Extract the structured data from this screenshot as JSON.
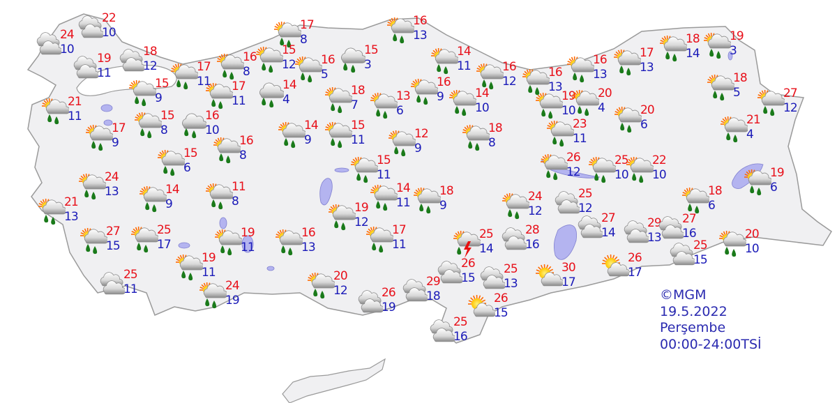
{
  "info": {
    "copyright": "©MGM",
    "date": "19.5.2022",
    "day": "Perşembe",
    "period": "00:00-24:00TSİ"
  },
  "colors": {
    "max_temp": "#e8101a",
    "min_temp": "#1a1ab8",
    "land": "#f0f0f2",
    "water": "#b4b4f0",
    "border": "#9a9a9a",
    "rain_drop": "#1a7a1a"
  },
  "legend_icons": {
    "c": "cloudy-icon",
    "r": "partly-cloudy-rain-icon",
    "cr": "cloudy-rain-icon",
    "s": "partly-cloudy-icon",
    "t": "thunderstorm-icon"
  },
  "stations": [
    {
      "max": "22",
      "min": "10",
      "icon": "c"
    },
    {
      "max": "24",
      "min": "10",
      "icon": "c"
    },
    {
      "max": "19",
      "min": "11",
      "icon": "c"
    },
    {
      "max": "18",
      "min": "12",
      "icon": "c"
    },
    {
      "max": "17",
      "min": "8",
      "icon": "r"
    },
    {
      "max": "16",
      "min": "13",
      "icon": "r"
    },
    {
      "max": "15",
      "min": "12",
      "icon": "r"
    },
    {
      "max": "16",
      "min": "8",
      "icon": "r"
    },
    {
      "max": "16",
      "min": "5",
      "icon": "r"
    },
    {
      "max": "15",
      "min": "3",
      "icon": "cr"
    },
    {
      "max": "17",
      "min": "11",
      "icon": "r"
    },
    {
      "max": "15",
      "min": "9",
      "icon": "r"
    },
    {
      "max": "17",
      "min": "11",
      "icon": "r"
    },
    {
      "max": "14",
      "min": "4",
      "icon": "cr"
    },
    {
      "max": "18",
      "min": "7",
      "icon": "r"
    },
    {
      "max": "13",
      "min": "6",
      "icon": "r"
    },
    {
      "max": "21",
      "min": "11",
      "icon": "r"
    },
    {
      "max": "15",
      "min": "8",
      "icon": "r"
    },
    {
      "max": "16",
      "min": "10",
      "icon": "cr"
    },
    {
      "max": "17",
      "min": "9",
      "icon": "r"
    },
    {
      "max": "16",
      "min": "8",
      "icon": "r"
    },
    {
      "max": "14",
      "min": "9",
      "icon": "r"
    },
    {
      "max": "15",
      "min": "11",
      "icon": "r"
    },
    {
      "max": "12",
      "min": "9",
      "icon": "r"
    },
    {
      "max": "15",
      "min": "6",
      "icon": "r"
    },
    {
      "max": "24",
      "min": "13",
      "icon": "r"
    },
    {
      "max": "14",
      "min": "9",
      "icon": "r"
    },
    {
      "max": "11",
      "min": "8",
      "icon": "r"
    },
    {
      "max": "15",
      "min": "11",
      "icon": "r"
    },
    {
      "max": "14",
      "min": "11",
      "icon": "r"
    },
    {
      "max": "18",
      "min": "9",
      "icon": "r"
    },
    {
      "max": "19",
      "min": "12",
      "icon": "r"
    },
    {
      "max": "21",
      "min": "13",
      "icon": "r"
    },
    {
      "max": "27",
      "min": "15",
      "icon": "r"
    },
    {
      "max": "25",
      "min": "17",
      "icon": "r"
    },
    {
      "max": "19",
      "min": "11",
      "icon": "r"
    },
    {
      "max": "16",
      "min": "13",
      "icon": "r"
    },
    {
      "max": "17",
      "min": "11",
      "icon": "r"
    },
    {
      "max": "19",
      "min": "11",
      "icon": "r"
    },
    {
      "max": "25",
      "min": "11",
      "icon": "c"
    },
    {
      "max": "24",
      "min": "19",
      "icon": "r"
    },
    {
      "max": "20",
      "min": "12",
      "icon": "r"
    },
    {
      "max": "26",
      "min": "19",
      "icon": "c"
    },
    {
      "max": "29",
      "min": "18",
      "icon": "c"
    },
    {
      "max": "14",
      "min": "11",
      "icon": "r"
    },
    {
      "max": "16",
      "min": "9",
      "icon": "r"
    },
    {
      "max": "14",
      "min": "10",
      "icon": "r"
    },
    {
      "max": "16",
      "min": "12",
      "icon": "r"
    },
    {
      "max": "16",
      "min": "13",
      "icon": "r"
    },
    {
      "max": "16",
      "min": "13",
      "icon": "r"
    },
    {
      "max": "17",
      "min": "13",
      "icon": "r"
    },
    {
      "max": "18",
      "min": "14",
      "icon": "r"
    },
    {
      "max": "19",
      "min": "3",
      "icon": "r"
    },
    {
      "max": "19",
      "min": "10",
      "icon": "r"
    },
    {
      "max": "20",
      "min": "4",
      "icon": "r"
    },
    {
      "max": "20",
      "min": "6",
      "icon": "r"
    },
    {
      "max": "18",
      "min": "5",
      "icon": "r"
    },
    {
      "max": "27",
      "min": "12",
      "icon": "r"
    },
    {
      "max": "21",
      "min": "4",
      "icon": "r"
    },
    {
      "max": "18",
      "min": "8",
      "icon": "r"
    },
    {
      "max": "23",
      "min": "11",
      "icon": "r"
    },
    {
      "max": "26",
      "min": "12",
      "icon": "r"
    },
    {
      "max": "25",
      "min": "10",
      "icon": "r"
    },
    {
      "max": "22",
      "min": "10",
      "icon": "r"
    },
    {
      "max": "19",
      "min": "6",
      "icon": "r"
    },
    {
      "max": "18",
      "min": "6",
      "icon": "r"
    },
    {
      "max": "24",
      "min": "12",
      "icon": "r"
    },
    {
      "max": "25",
      "min": "12",
      "icon": "c"
    },
    {
      "max": "27",
      "min": "14",
      "icon": "c"
    },
    {
      "max": "29",
      "min": "13",
      "icon": "c"
    },
    {
      "max": "27",
      "min": "16",
      "icon": "c"
    },
    {
      "max": "20",
      "min": "10",
      "icon": "r"
    },
    {
      "max": "25",
      "min": "14",
      "icon": "t"
    },
    {
      "max": "28",
      "min": "16",
      "icon": "c"
    },
    {
      "max": "26",
      "min": "15",
      "icon": "c"
    },
    {
      "max": "25",
      "min": "13",
      "icon": "c"
    },
    {
      "max": "30",
      "min": "17",
      "icon": "s"
    },
    {
      "max": "26",
      "min": "17",
      "icon": "s"
    },
    {
      "max": "25",
      "min": "15",
      "icon": "c"
    },
    {
      "max": "26",
      "min": "15",
      "icon": "s"
    },
    {
      "max": "25",
      "min": "16",
      "icon": "c"
    }
  ]
}
